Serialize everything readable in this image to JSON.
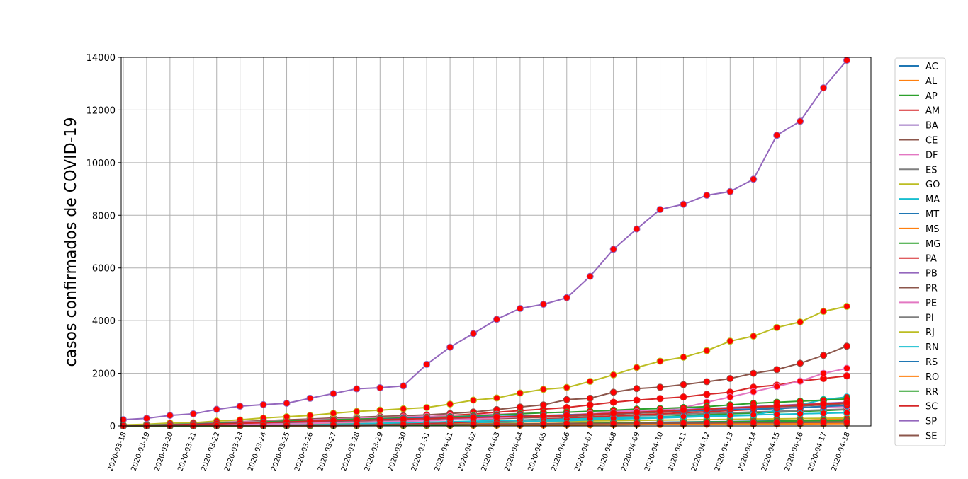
{
  "chart_data": {
    "type": "line",
    "title": "",
    "xlabel": "",
    "ylabel": "casos confirmados de COVID-19",
    "ylim": [
      0,
      14000
    ],
    "yticks": [
      0,
      2000,
      4000,
      6000,
      8000,
      10000,
      12000,
      14000
    ],
    "grid": true,
    "legend_position": "outside-right",
    "marker_color": "#ff0000",
    "x": [
      "2020-03-18",
      "2020-03-19",
      "2020-03-20",
      "2020-03-21",
      "2020-03-22",
      "2020-03-23",
      "2020-03-24",
      "2020-03-25",
      "2020-03-26",
      "2020-03-27",
      "2020-03-28",
      "2020-03-29",
      "2020-03-30",
      "2020-03-31",
      "2020-04-01",
      "2020-04-02",
      "2020-04-03",
      "2020-04-04",
      "2020-04-05",
      "2020-04-06",
      "2020-04-07",
      "2020-04-08",
      "2020-04-09",
      "2020-04-10",
      "2020-04-11",
      "2020-04-12",
      "2020-04-13",
      "2020-04-14",
      "2020-04-15",
      "2020-04-16",
      "2020-04-17",
      "2020-04-18"
    ],
    "series": [
      {
        "name": "AC",
        "color": "#1f77b4",
        "values": [
          3,
          4,
          7,
          11,
          11,
          17,
          21,
          24,
          25,
          34,
          41,
          42,
          42,
          45,
          48,
          49,
          53,
          63,
          70,
          75,
          84,
          93,
          101,
          115,
          125,
          140,
          155,
          170,
          182,
          196,
          210,
          226
        ]
      },
      {
        "name": "AL",
        "color": "#ff7f0e",
        "values": [
          1,
          1,
          4,
          7,
          8,
          8,
          11,
          11,
          14,
          17,
          20,
          24,
          26,
          29,
          30,
          34,
          38,
          42,
          48,
          56,
          63,
          71,
          78,
          88,
          102,
          120,
          140,
          160,
          185,
          210,
          240,
          265
        ]
      },
      {
        "name": "AP",
        "color": "#2ca02c",
        "values": [
          0,
          0,
          0,
          1,
          1,
          1,
          2,
          3,
          5,
          10,
          16,
          25,
          40,
          60,
          80,
          100,
          120,
          150,
          180,
          200,
          230,
          260,
          300,
          340,
          390,
          430,
          460,
          490,
          520,
          550,
          580,
          620
        ]
      },
      {
        "name": "AM",
        "color": "#d62728",
        "values": [
          5,
          11,
          26,
          47,
          67,
          81,
          111,
          140,
          175,
          200,
          230,
          260,
          300,
          350,
          400,
          450,
          520,
          580,
          640,
          700,
          800,
          900,
          980,
          1040,
          1100,
          1200,
          1280,
          1470,
          1550,
          1700,
          1800,
          1900
        ]
      },
      {
        "name": "BA",
        "color": "#9467bd",
        "values": [
          8,
          16,
          30,
          40,
          56,
          70,
          90,
          105,
          120,
          140,
          160,
          180,
          200,
          230,
          260,
          290,
          320,
          350,
          380,
          420,
          460,
          500,
          540,
          580,
          620,
          660,
          700,
          740,
          780,
          820,
          860,
          900
        ]
      },
      {
        "name": "CE",
        "color": "#8c564b",
        "values": [
          20,
          30,
          50,
          84,
          125,
          160,
          200,
          230,
          260,
          300,
          330,
          360,
          390,
          420,
          470,
          530,
          620,
          720,
          800,
          1000,
          1050,
          1280,
          1420,
          1470,
          1570,
          1680,
          1800,
          2000,
          2140,
          2380,
          2680,
          3030
        ]
      },
      {
        "name": "DF",
        "color": "#e377c2",
        "values": [
          20,
          30,
          50,
          80,
          120,
          150,
          170,
          200,
          230,
          260,
          290,
          320,
          340,
          360,
          380,
          410,
          440,
          470,
          500,
          520,
          540,
          560,
          580,
          600,
          700,
          900,
          1100,
          1300,
          1500,
          1700,
          2000,
          2190
        ]
      },
      {
        "name": "ES",
        "color": "#7f7f7f",
        "values": [
          2,
          4,
          5,
          6,
          8,
          10,
          16,
          25,
          40,
          50,
          60,
          70,
          80,
          100,
          120,
          150,
          180,
          210,
          240,
          270,
          300,
          340,
          380,
          410,
          450,
          480,
          500,
          530,
          560,
          580,
          610,
          640
        ]
      },
      {
        "name": "GO",
        "color": "#bcbd22",
        "values": [
          8,
          12,
          16,
          20,
          30,
          40,
          50,
          60,
          70,
          80,
          90,
          100,
          110,
          120,
          130,
          140,
          150,
          160,
          170,
          180,
          190,
          200,
          210,
          220,
          230,
          240,
          250,
          260,
          270,
          280,
          290,
          300
        ]
      },
      {
        "name": "MA",
        "color": "#17becf",
        "values": [
          1,
          1,
          2,
          5,
          10,
          12,
          15,
          20,
          30,
          40,
          50,
          60,
          70,
          80,
          100,
          120,
          140,
          160,
          180,
          200,
          230,
          260,
          280,
          300,
          330,
          360,
          380,
          400,
          600,
          800,
          1000,
          1100
        ]
      },
      {
        "name": "MT",
        "color": "#1f77b4",
        "values": [
          1,
          1,
          2,
          4,
          6,
          8,
          10,
          14,
          18,
          22,
          26,
          30,
          35,
          40,
          50,
          60,
          70,
          80,
          90,
          100,
          110,
          120,
          130,
          140,
          150,
          160,
          170,
          180,
          190,
          200,
          210,
          220
        ]
      },
      {
        "name": "MS",
        "color": "#ff7f0e",
        "values": [
          7,
          10,
          14,
          20,
          25,
          30,
          35,
          40,
          45,
          50,
          55,
          60,
          65,
          70,
          75,
          80,
          85,
          90,
          95,
          100,
          105,
          110,
          115,
          120,
          125,
          130,
          135,
          140,
          145,
          150,
          155,
          160
        ]
      },
      {
        "name": "MG",
        "color": "#2ca02c",
        "values": [
          20,
          35,
          55,
          80,
          100,
          130,
          150,
          190,
          210,
          240,
          260,
          280,
          300,
          320,
          340,
          380,
          420,
          460,
          500,
          520,
          560,
          600,
          640,
          660,
          700,
          730,
          800,
          860,
          900,
          940,
          980,
          1030
        ]
      },
      {
        "name": "PA",
        "color": "#d62728",
        "values": [
          2,
          4,
          5,
          6,
          8,
          10,
          15,
          20,
          30,
          40,
          50,
          60,
          80,
          100,
          120,
          150,
          180,
          220,
          260,
          300,
          340,
          380,
          420,
          460,
          500,
          540,
          580,
          620,
          660,
          700,
          740,
          780
        ]
      },
      {
        "name": "PB",
        "color": "#9467bd",
        "values": [
          1,
          1,
          1,
          2,
          3,
          4,
          5,
          8,
          10,
          14,
          18,
          22,
          26,
          30,
          35,
          40,
          45,
          50,
          60,
          70,
          80,
          90,
          100,
          110,
          120,
          130,
          140,
          150,
          160,
          170,
          180,
          190
        ]
      },
      {
        "name": "PR",
        "color": "#8c564b",
        "values": [
          10,
          20,
          30,
          40,
          50,
          60,
          80,
          100,
          120,
          140,
          160,
          180,
          200,
          220,
          240,
          260,
          280,
          300,
          330,
          360,
          400,
          440,
          480,
          520,
          560,
          600,
          640,
          680,
          720,
          760,
          800,
          850
        ]
      },
      {
        "name": "PE",
        "color": "#e377c2",
        "values": [
          15,
          20,
          30,
          40,
          50,
          60,
          70,
          80,
          100,
          120,
          140,
          160,
          180,
          200,
          230,
          260,
          300,
          340,
          380,
          420,
          460,
          500,
          540,
          580,
          600,
          620,
          640,
          660,
          680,
          700,
          720,
          740
        ]
      },
      {
        "name": "PI",
        "color": "#7f7f7f",
        "values": [
          1,
          1,
          1,
          2,
          3,
          4,
          5,
          6,
          8,
          10,
          12,
          14,
          16,
          18,
          20,
          24,
          28,
          32,
          36,
          40,
          45,
          50,
          55,
          60,
          65,
          70,
          75,
          80,
          85,
          90,
          95,
          100
        ]
      },
      {
        "name": "RJ",
        "color": "#bcbd22",
        "values": [
          40,
          65,
          110,
          120,
          185,
          230,
          300,
          350,
          400,
          480,
          550,
          600,
          650,
          700,
          830,
          980,
          1060,
          1250,
          1390,
          1460,
          1690,
          1940,
          2220,
          2460,
          2610,
          2860,
          3220,
          3410,
          3740,
          3950,
          4350,
          4540
        ]
      },
      {
        "name": "RN",
        "color": "#17becf",
        "values": [
          1,
          2,
          3,
          5,
          10,
          15,
          20,
          30,
          40,
          60,
          80,
          100,
          120,
          140,
          160,
          180,
          200,
          220,
          240,
          260,
          280,
          300,
          320,
          340,
          360,
          380,
          400,
          420,
          440,
          460,
          480,
          500
        ]
      },
      {
        "name": "RS",
        "color": "#1f77b4",
        "values": [
          20,
          30,
          50,
          70,
          90,
          110,
          130,
          150,
          170,
          190,
          220,
          250,
          280,
          300,
          320,
          340,
          360,
          380,
          400,
          420,
          440,
          480,
          520,
          560,
          580,
          600,
          620,
          640,
          660,
          700,
          740,
          780
        ]
      },
      {
        "name": "RO",
        "color": "#ff7f0e",
        "values": [
          1,
          1,
          2,
          3,
          4,
          5,
          6,
          7,
          8,
          10,
          12,
          14,
          16,
          18,
          20,
          24,
          28,
          32,
          36,
          40,
          44,
          48,
          52,
          56,
          60,
          64,
          68,
          72,
          76,
          80,
          84,
          90
        ]
      },
      {
        "name": "RR",
        "color": "#2ca02c",
        "values": [
          1,
          2,
          2,
          3,
          5,
          8,
          10,
          12,
          16,
          20,
          24,
          28,
          32,
          36,
          40,
          50,
          60,
          70,
          80,
          90,
          100,
          110,
          120,
          130,
          140,
          150,
          160,
          170,
          180,
          190,
          200,
          210
        ]
      },
      {
        "name": "SC",
        "color": "#d62728",
        "values": [
          10,
          20,
          40,
          60,
          80,
          100,
          120,
          150,
          180,
          200,
          220,
          240,
          260,
          280,
          300,
          320,
          340,
          360,
          380,
          400,
          440,
          480,
          520,
          560,
          600,
          640,
          680,
          720,
          760,
          800,
          840,
          880
        ]
      },
      {
        "name": "SP",
        "color": "#9467bd",
        "values": [
          240,
          290,
          400,
          460,
          630,
          750,
          810,
          860,
          1050,
          1230,
          1410,
          1450,
          1520,
          2340,
          2990,
          3510,
          4050,
          4460,
          4620,
          4870,
          5680,
          6710,
          7480,
          8220,
          8420,
          8760,
          8900,
          9370,
          11040,
          11570,
          12840,
          13890
        ]
      },
      {
        "name": "SE",
        "color": "#8c564b",
        "values": [
          5,
          8,
          10,
          12,
          15,
          17,
          20,
          25,
          30,
          35,
          40,
          45,
          50,
          55,
          60,
          65,
          70,
          75,
          80,
          85,
          90,
          95,
          100,
          105,
          110,
          115,
          120,
          125,
          130,
          135,
          140,
          150
        ]
      }
    ]
  }
}
